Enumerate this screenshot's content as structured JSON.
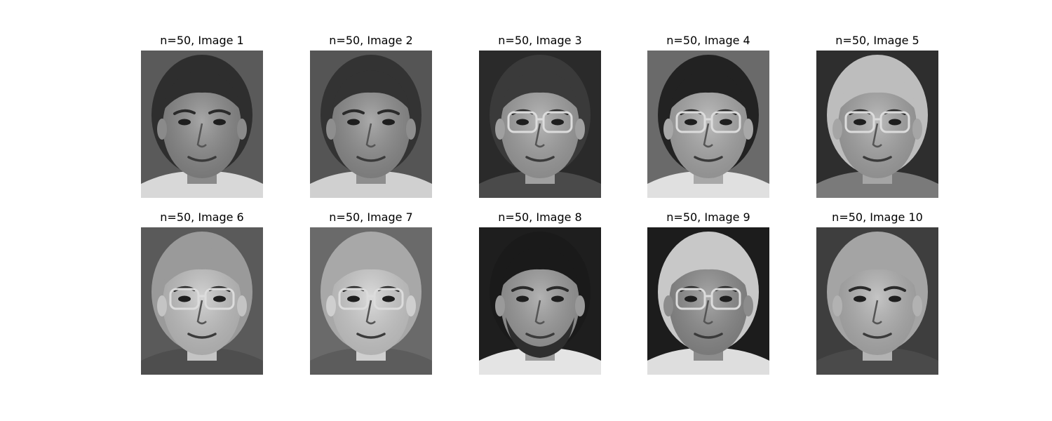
{
  "figure": {
    "panels": [
      {
        "title": "n=50, Image 1",
        "bg": "#5a5a5a",
        "hair": "#2e2e2e",
        "skin": "#8a8a8a",
        "shirt": "#d8d8d8",
        "glasses": false,
        "beard": false
      },
      {
        "title": "n=50, Image 2",
        "bg": "#555555",
        "hair": "#333333",
        "skin": "#8e8e8e",
        "shirt": "#d0d0d0",
        "glasses": false,
        "beard": false
      },
      {
        "title": "n=50, Image 3",
        "bg": "#2a2a2a",
        "hair": "#3a3a3a",
        "skin": "#a0a0a0",
        "shirt": "#4a4a4a",
        "glasses": true,
        "beard": false
      },
      {
        "title": "n=50, Image 4",
        "bg": "#6a6a6a",
        "hair": "#222222",
        "skin": "#a8a8a8",
        "shirt": "#e0e0e0",
        "glasses": true,
        "beard": false
      },
      {
        "title": "n=50, Image 5",
        "bg": "#2e2e2e",
        "hair": "#bdbdbd",
        "skin": "#a5a5a5",
        "shirt": "#7a7a7a",
        "glasses": true,
        "beard": false
      },
      {
        "title": "n=50, Image 6",
        "bg": "#5a5a5a",
        "hair": "#9a9a9a",
        "skin": "#c4c4c4",
        "shirt": "#4e4e4e",
        "glasses": true,
        "beard": false
      },
      {
        "title": "n=50, Image 7",
        "bg": "#6a6a6a",
        "hair": "#a8a8a8",
        "skin": "#cfcfcf",
        "shirt": "#5c5c5c",
        "glasses": true,
        "beard": false
      },
      {
        "title": "n=50, Image 8",
        "bg": "#1e1e1e",
        "hair": "#1a1a1a",
        "skin": "#9a9a9a",
        "shirt": "#e4e4e4",
        "glasses": false,
        "beard": true
      },
      {
        "title": "n=50, Image 9",
        "bg": "#1c1c1c",
        "hair": "#c8c8c8",
        "skin": "#8c8c8c",
        "shirt": "#dedede",
        "glasses": true,
        "beard": false
      },
      {
        "title": "n=50, Image 10",
        "bg": "#3e3e3e",
        "hair": "#a4a4a4",
        "skin": "#b2b2b2",
        "shirt": "#4a4a4a",
        "glasses": false,
        "beard": false
      }
    ]
  }
}
